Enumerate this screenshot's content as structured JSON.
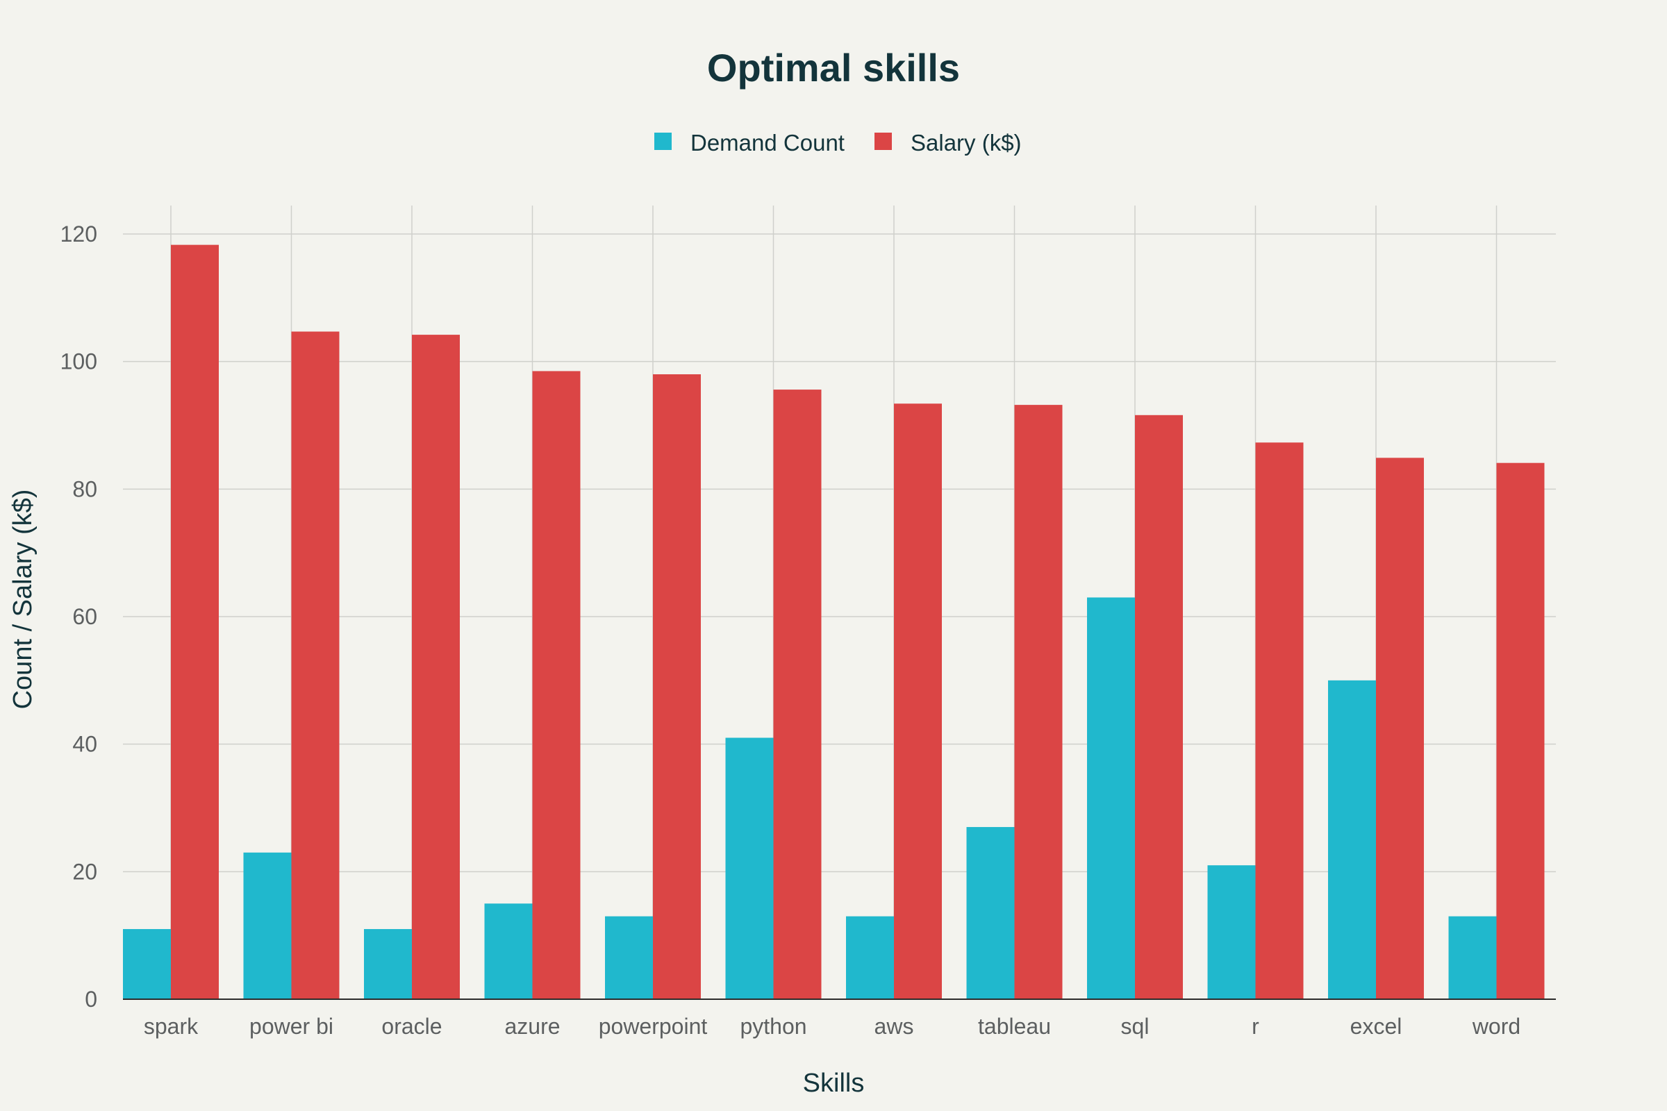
{
  "chart_data": {
    "type": "bar",
    "title": "Optimal skills",
    "xlabel": "Skills",
    "ylabel": "Count / Salary (k$)",
    "categories": [
      "spark",
      "power bi",
      "oracle",
      "azure",
      "powerpoint",
      "python",
      "aws",
      "tableau",
      "sql",
      "r",
      "excel",
      "word"
    ],
    "series": [
      {
        "name": "Demand Count",
        "color": "#20b8cd",
        "values": [
          11,
          23,
          11,
          15,
          13,
          41,
          13,
          27,
          63,
          21,
          50,
          13
        ]
      },
      {
        "name": "Salary (k$)",
        "color": "#db4545",
        "values": [
          118.3,
          104.7,
          104.2,
          98.5,
          98.0,
          95.6,
          93.4,
          93.2,
          91.6,
          87.3,
          84.9,
          84.1
        ]
      }
    ],
    "ylim": [
      0,
      120
    ],
    "yticks": [
      0,
      20,
      40,
      60,
      80,
      100,
      120
    ],
    "grid": true,
    "legend_position": "top-center"
  }
}
